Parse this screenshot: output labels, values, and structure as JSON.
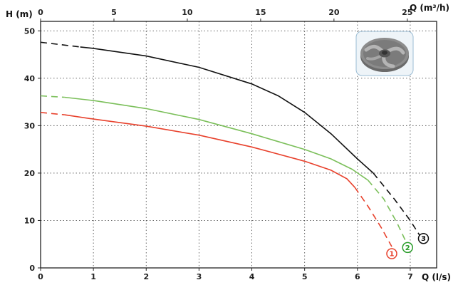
{
  "chart_data": {
    "type": "line",
    "title": "",
    "xlabel": "Q (l/s)",
    "x2label": "Q (m³/h)",
    "ylabel": "H (m)",
    "xlim": [
      0,
      7.5
    ],
    "x2lim": [
      0,
      27
    ],
    "ylim": [
      0,
      52
    ],
    "x_ticks": [
      0,
      1,
      2,
      3,
      4,
      5,
      6,
      7
    ],
    "x2_ticks": [
      0,
      5,
      10,
      15,
      20,
      25
    ],
    "y_ticks": [
      0,
      10,
      20,
      30,
      40,
      50
    ],
    "grid": true,
    "series": [
      {
        "name": "1",
        "color": "#e8412c",
        "solid": [
          [
            0.45,
            32.3
          ],
          [
            1,
            31.4
          ],
          [
            2,
            29.9
          ],
          [
            3,
            28.0
          ],
          [
            4,
            25.5
          ],
          [
            5,
            22.5
          ],
          [
            5.5,
            20.6
          ],
          [
            5.8,
            18.8
          ],
          [
            5.95,
            17.0
          ]
        ],
        "dashed_start": [
          [
            0,
            32.8
          ],
          [
            0.45,
            32.3
          ]
        ],
        "dashed_end": [
          [
            5.95,
            17.0
          ],
          [
            6.2,
            13.0
          ],
          [
            6.45,
            8.5
          ],
          [
            6.65,
            4.5
          ]
        ]
      },
      {
        "name": "2",
        "color": "#7bbf5a",
        "solid": [
          [
            0.45,
            36.0
          ],
          [
            1,
            35.3
          ],
          [
            2,
            33.6
          ],
          [
            3,
            31.3
          ],
          [
            4,
            28.3
          ],
          [
            5,
            25.0
          ],
          [
            5.5,
            23.0
          ],
          [
            5.9,
            20.8
          ],
          [
            6.2,
            18.5
          ]
        ],
        "dashed_start": [
          [
            0,
            36.3
          ],
          [
            0.45,
            36.0
          ]
        ],
        "dashed_end": [
          [
            6.2,
            18.5
          ],
          [
            6.5,
            14.5
          ],
          [
            6.75,
            9.5
          ],
          [
            6.92,
            5.5
          ]
        ]
      },
      {
        "name": "3",
        "color": "#111111",
        "solid": [
          [
            0.75,
            46.6
          ],
          [
            1,
            46.3
          ],
          [
            2,
            44.7
          ],
          [
            3,
            42.3
          ],
          [
            4,
            38.8
          ],
          [
            4.5,
            36.3
          ],
          [
            5,
            32.8
          ],
          [
            5.5,
            28.3
          ],
          [
            6,
            23.0
          ],
          [
            6.3,
            20.0
          ]
        ],
        "dashed_start": [
          [
            0,
            47.6
          ],
          [
            0.75,
            46.6
          ]
        ],
        "dashed_end": [
          [
            6.3,
            20.0
          ],
          [
            6.7,
            14.5
          ],
          [
            7.0,
            10.0
          ],
          [
            7.2,
            6.5
          ]
        ]
      }
    ],
    "markers": [
      {
        "label": "1",
        "color": "#e8412c",
        "x": 6.65,
        "y": 3.0
      },
      {
        "label": "2",
        "color": "#2a9d2a",
        "x": 6.95,
        "y": 4.3
      },
      {
        "label": "3",
        "color": "#111111",
        "x": 7.25,
        "y": 6.2
      }
    ],
    "inset_image": "impeller-icon"
  }
}
